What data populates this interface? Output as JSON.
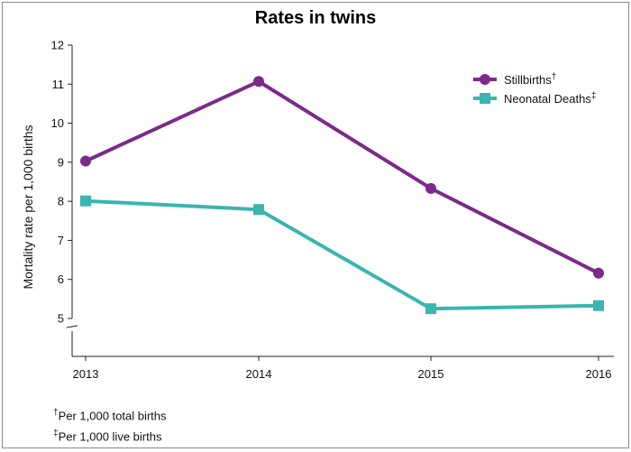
{
  "chart_data": {
    "type": "line",
    "title": "Rates in twins",
    "ylabel": "Mortality rate per 1,000 births",
    "xlabel": "",
    "categories": [
      "2013",
      "2014",
      "2015",
      "2016"
    ],
    "ylim": [
      5,
      12
    ],
    "yticks": [
      5,
      6,
      7,
      8,
      9,
      10,
      11,
      12
    ],
    "axis_break": true,
    "legend_position": "top-right",
    "series": [
      {
        "name": "Stillbirths",
        "marker": "†",
        "color": "#7b2a8a",
        "shape": "circle",
        "values": [
          9.03,
          11.07,
          8.33,
          6.16
        ]
      },
      {
        "name": "Neonatal Deaths",
        "marker": "‡",
        "color": "#3ab5b0",
        "shape": "square",
        "values": [
          8.01,
          7.79,
          5.25,
          5.33
        ]
      }
    ],
    "footnotes": [
      {
        "mark": "†",
        "text": "Per 1,000 total births"
      },
      {
        "mark": "‡",
        "text": "Per 1,000 live births"
      }
    ]
  }
}
